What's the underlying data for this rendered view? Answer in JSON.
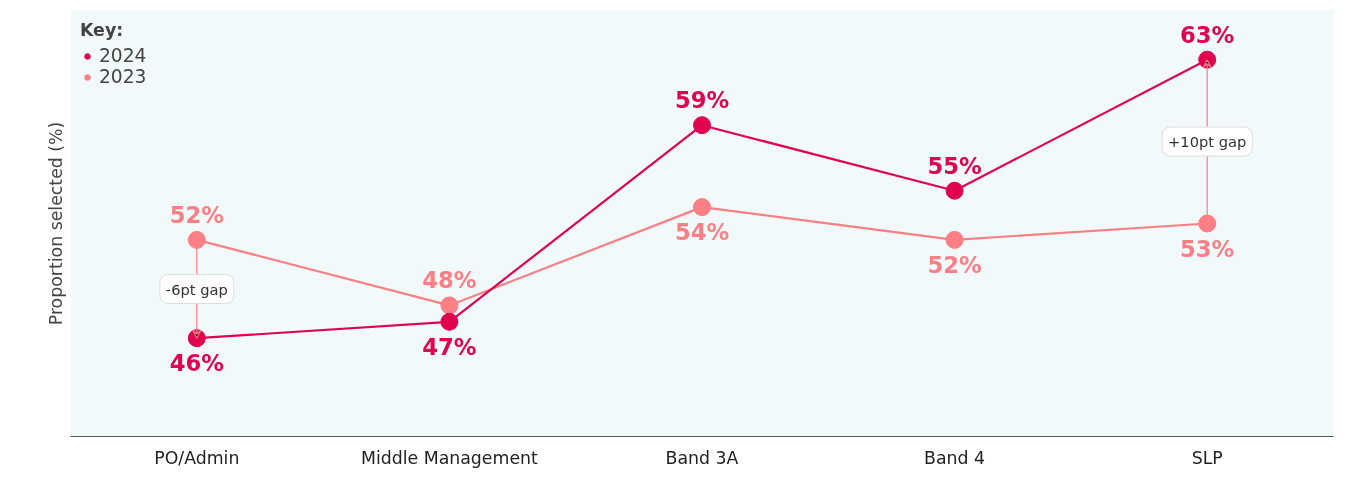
{
  "chart_data": {
    "type": "line",
    "ylabel": "Proportion selected (%)",
    "legend_title": "Key:",
    "categories": [
      "PO/Admin",
      "Middle Management",
      "Band 3A",
      "Band 4",
      "SLP"
    ],
    "series": [
      {
        "name": "2024",
        "color": "#e0044f",
        "values": [
          46,
          47,
          59,
          55,
          63
        ],
        "value_labels": [
          "46%",
          "47%",
          "59%",
          "55%",
          "63%"
        ]
      },
      {
        "name": "2023",
        "color": "#fb7f85",
        "values": [
          52,
          48,
          54,
          52,
          53
        ],
        "value_labels": [
          "52%",
          "48%",
          "54%",
          "52%",
          "53%"
        ]
      }
    ],
    "annotations": [
      "-6pt gap",
      "+10pt gap"
    ],
    "ylim": [
      40,
      66
    ],
    "tick_labels": "x",
    "grid": false,
    "legend": "top left",
    "marker": "circle",
    "line_style": "solid"
  }
}
